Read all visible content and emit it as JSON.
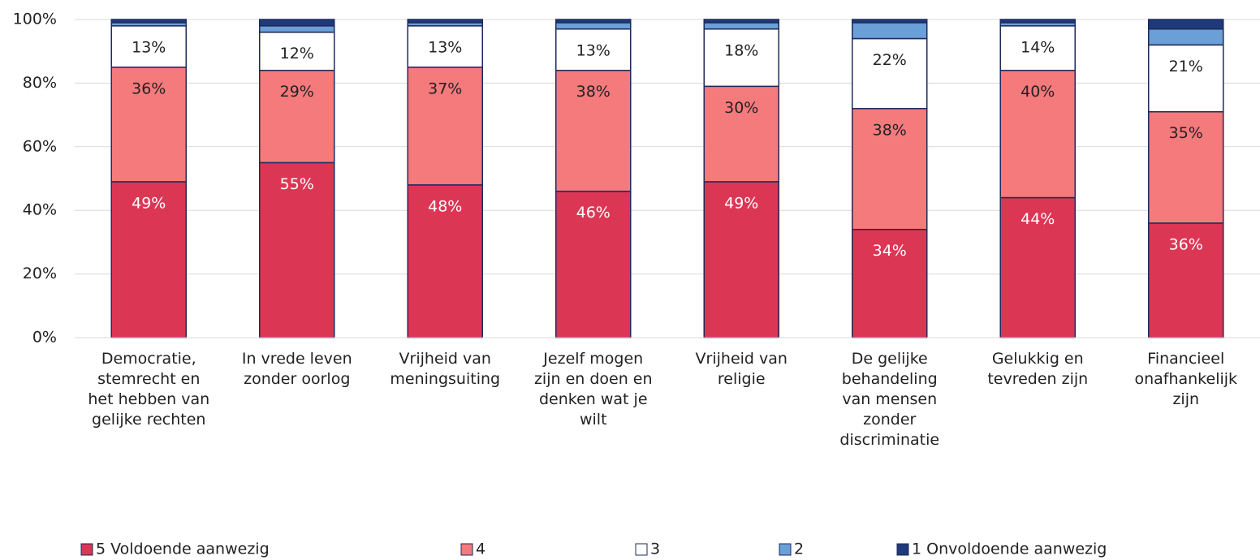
{
  "chart_data": {
    "type": "stacked_bar",
    "categories": [
      "Democratie, stemrecht en het hebben van gelijke rechten",
      "In vrede leven zonder oorlog",
      "Vrijheid van meningsuiting",
      "Jezelf mogen zijn en doen en denken wat je wilt",
      "Vrijheid van religie",
      "De gelijke behandeling van mensen zonder discriminatie",
      "Gelukkig en tevreden zijn",
      "Financieel onafhankelijk zijn"
    ],
    "series": [
      {
        "name": "5 Voldoende aanwezig",
        "color": "#dc3655",
        "values": [
          49,
          55,
          48,
          46,
          49,
          34,
          44,
          36
        ],
        "value_labels": [
          "49%",
          "55%",
          "48%",
          "46%",
          "49%",
          "34%",
          "44%",
          "36%"
        ]
      },
      {
        "name": "4",
        "color": "#f47a7c",
        "values": [
          36,
          29,
          37,
          38,
          30,
          38,
          40,
          35
        ],
        "value_labels": [
          "36%",
          "29%",
          "37%",
          "38%",
          "30%",
          "38%",
          "40%",
          "35%"
        ]
      },
      {
        "name": "3",
        "color": "#ffffff",
        "values": [
          13,
          12,
          13,
          13,
          18,
          22,
          14,
          21
        ],
        "value_labels": [
          "13%",
          "12%",
          "13%",
          "13%",
          "18%",
          "22%",
          "14%",
          "21%"
        ]
      },
      {
        "name": "2",
        "color": "#6a9fd8",
        "values": [
          1,
          2,
          1,
          2,
          2,
          5,
          1,
          5
        ]
      },
      {
        "name": "1 Onvoldoende aanwezig",
        "color": "#1f3a7a",
        "values": [
          1,
          2,
          1,
          1,
          1,
          1,
          1,
          3
        ]
      }
    ],
    "ylim": [
      0,
      100
    ],
    "yticks": [
      {
        "value": 0,
        "label": "0%"
      },
      {
        "value": 20,
        "label": "20%"
      },
      {
        "value": 40,
        "label": "40%"
      },
      {
        "value": 60,
        "label": "60%"
      },
      {
        "value": 80,
        "label": "80%"
      },
      {
        "value": 100,
        "label": "100%"
      }
    ],
    "grid": true,
    "legend": "bottom"
  }
}
